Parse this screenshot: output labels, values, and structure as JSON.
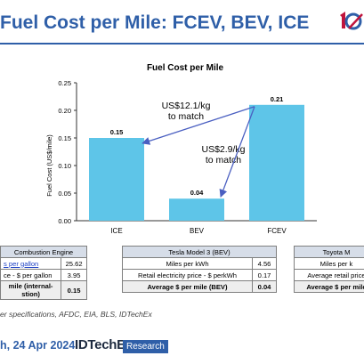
{
  "slide": {
    "title": "Fuel Cost per Mile: FCEV, BEV, ICE",
    "source": "er specifications, AFDC, EIA, BLS, IDTechEx",
    "date": "h, 24 Apr 2024",
    "brand_name": "IDTechEx",
    "brand_tag": "Research",
    "logo_icon": "idtechex-logo-icon",
    "colors": {
      "title": "#2f5fa8",
      "bar": "#5ec5e8",
      "arrow": "#4a5fc1",
      "table_head": "#d6dde8"
    }
  },
  "chart_data": {
    "type": "bar",
    "title": "Fuel Cost per Mile",
    "ylabel": "Fuel Cost (US$/mile)",
    "xlabel": "",
    "categories": [
      "ICE",
      "BEV",
      "FCEV"
    ],
    "values": [
      0.15,
      0.04,
      0.21
    ],
    "data_labels": [
      "0.15",
      "0.04",
      "0.21"
    ],
    "ylim": [
      0,
      0.25
    ],
    "yticks": [
      "0.00",
      "0.05",
      "0.10",
      "0.15",
      "0.20",
      "0.25"
    ],
    "grid": false,
    "annotations": [
      {
        "lines": [
          "US$12.1/kg",
          "to match"
        ],
        "points_to": "ICE"
      },
      {
        "lines": [
          "US$2.9/kg",
          "to match"
        ],
        "points_to": "BEV"
      }
    ]
  },
  "tables": {
    "ice": {
      "header": "Combustion Engine",
      "rows": [
        {
          "label": "s per gallon",
          "value": "25.62"
        },
        {
          "label": "ce  - $ per gallon",
          "value": "3.95"
        }
      ],
      "total": {
        "label_1": "mile (internal-",
        "label_2": "stion)",
        "value": "0.15"
      }
    },
    "bev": {
      "header": "Tesla Model 3 (BEV)",
      "rows": [
        {
          "label": "Miles per kWh",
          "value": "4.56"
        },
        {
          "label": "Retail electricity price - $ perkWh",
          "value": "0.17"
        }
      ],
      "total": {
        "label": "Average $ per mile (BEV)",
        "value": "0.04"
      }
    },
    "fcev": {
      "header": "Toyota M",
      "rows": [
        {
          "label": "Miles per k"
        },
        {
          "label": "Average retail price"
        }
      ],
      "total": {
        "label": "Average $ per mile"
      }
    }
  }
}
